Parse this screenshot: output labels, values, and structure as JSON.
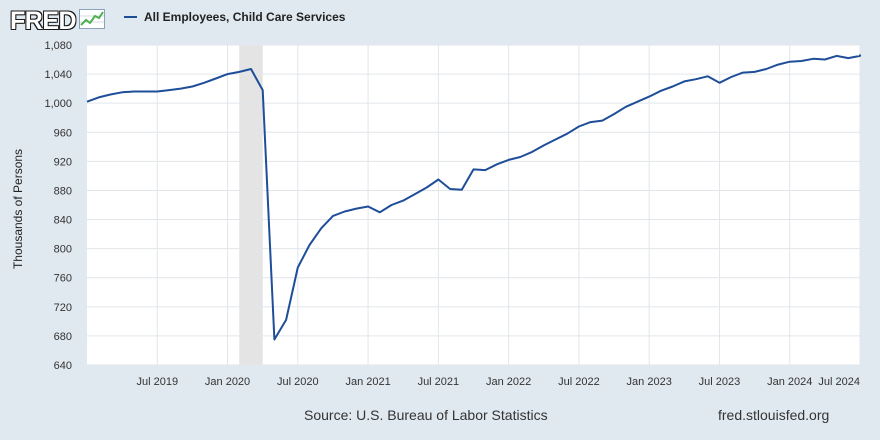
{
  "header": {
    "logo_text": "FRED",
    "logo_icon": "line-graph-icon"
  },
  "legend": {
    "label": "All Employees, Child Care Services",
    "color": "#1f4e99"
  },
  "footer": {
    "source": "Source: U.S. Bureau of Labor Statistics",
    "site": "fred.stlouisfed.org"
  },
  "chart_data": {
    "type": "line",
    "title": "",
    "ylabel": "Thousands of Persons",
    "xlabel": "",
    "ylim": [
      640,
      1080
    ],
    "y_ticks": [
      "640",
      "680",
      "720",
      "760",
      "800",
      "840",
      "880",
      "920",
      "960",
      "1,000",
      "1,040",
      "1,080"
    ],
    "x_ticks": [
      "Jul 2019",
      "Jan 2020",
      "Jul 2020",
      "Jan 2021",
      "Jul 2021",
      "Jan 2022",
      "Jul 2022",
      "Jan 2023",
      "Jul 2023",
      "Jan 2024",
      "Jul 2024"
    ],
    "x_range": [
      "2019-01",
      "2024-07"
    ],
    "grid": true,
    "recession_shading": {
      "start": "2020-02",
      "end": "2020-04"
    },
    "series": [
      {
        "name": "All Employees, Child Care Services",
        "color": "#1f4e99",
        "points": [
          [
            "2019-01",
            1002
          ],
          [
            "2019-02",
            1008
          ],
          [
            "2019-03",
            1012
          ],
          [
            "2019-04",
            1015
          ],
          [
            "2019-05",
            1016
          ],
          [
            "2019-06",
            1016
          ],
          [
            "2019-07",
            1016
          ],
          [
            "2019-08",
            1018
          ],
          [
            "2019-09",
            1020
          ],
          [
            "2019-10",
            1023
          ],
          [
            "2019-11",
            1028
          ],
          [
            "2019-12",
            1034
          ],
          [
            "2020-01",
            1040
          ],
          [
            "2020-02",
            1043
          ],
          [
            "2020-03",
            1047
          ],
          [
            "2020-04",
            1018
          ],
          [
            "2020-05",
            675
          ],
          [
            "2020-06",
            702
          ],
          [
            "2020-07",
            774
          ],
          [
            "2020-08",
            805
          ],
          [
            "2020-09",
            828
          ],
          [
            "2020-10",
            845
          ],
          [
            "2020-11",
            851
          ],
          [
            "2020-12",
            855
          ],
          [
            "2021-01",
            858
          ],
          [
            "2021-02",
            850
          ],
          [
            "2021-03",
            860
          ],
          [
            "2021-04",
            866
          ],
          [
            "2021-05",
            875
          ],
          [
            "2021-06",
            884
          ],
          [
            "2021-07",
            895
          ],
          [
            "2021-08",
            882
          ],
          [
            "2021-09",
            881
          ],
          [
            "2021-10",
            909
          ],
          [
            "2021-11",
            908
          ],
          [
            "2021-12",
            916
          ],
          [
            "2022-01",
            922
          ],
          [
            "2022-02",
            926
          ],
          [
            "2022-03",
            933
          ],
          [
            "2022-04",
            942
          ],
          [
            "2022-05",
            950
          ],
          [
            "2022-06",
            958
          ],
          [
            "2022-07",
            968
          ],
          [
            "2022-08",
            974
          ],
          [
            "2022-09",
            976
          ],
          [
            "2022-10",
            985
          ],
          [
            "2022-11",
            995
          ],
          [
            "2022-12",
            1002
          ],
          [
            "2023-01",
            1009
          ],
          [
            "2023-02",
            1017
          ],
          [
            "2023-03",
            1023
          ],
          [
            "2023-04",
            1030
          ],
          [
            "2023-05",
            1033
          ],
          [
            "2023-06",
            1037
          ],
          [
            "2023-07",
            1028
          ],
          [
            "2023-08",
            1036
          ],
          [
            "2023-09",
            1042
          ],
          [
            "2023-10",
            1043
          ],
          [
            "2023-11",
            1047
          ],
          [
            "2023-12",
            1053
          ],
          [
            "2024-01",
            1057
          ],
          [
            "2024-02",
            1058
          ],
          [
            "2024-03",
            1061
          ],
          [
            "2024-04",
            1060
          ],
          [
            "2024-05",
            1065
          ],
          [
            "2024-06",
            1062
          ],
          [
            "2024-07",
            1065
          ],
          [
            "2024-08",
            1067
          ]
        ]
      }
    ]
  }
}
